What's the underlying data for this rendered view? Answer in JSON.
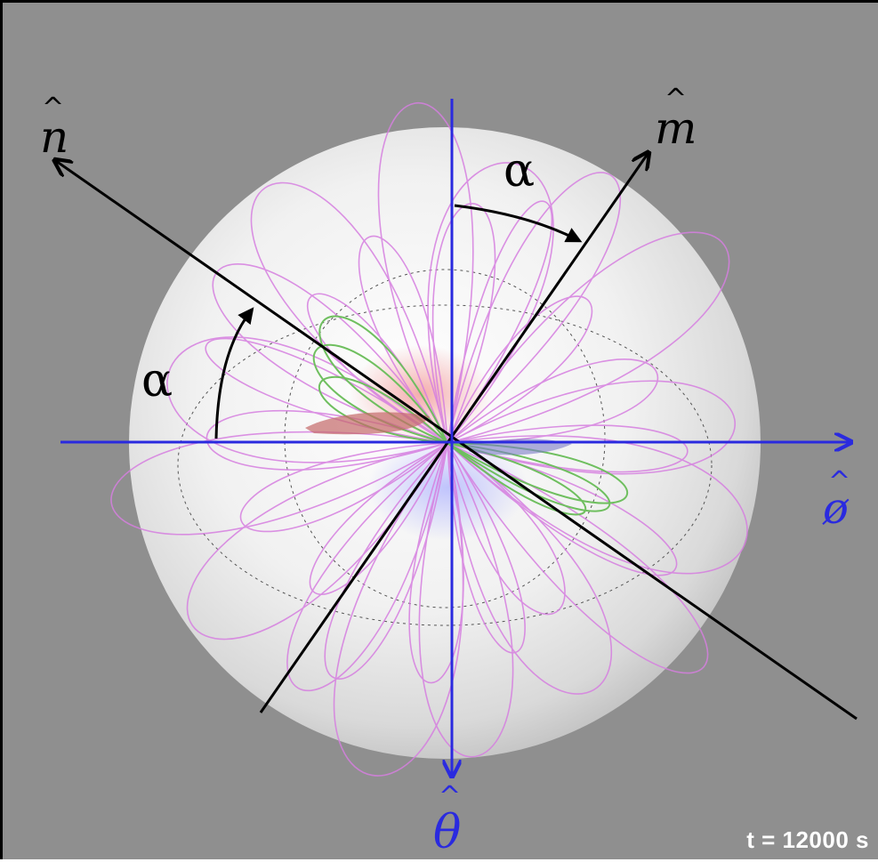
{
  "labels": {
    "n_axis": "n",
    "m_axis": "m",
    "phi_axis": "ø",
    "theta_axis": "θ",
    "alpha_top": "α",
    "alpha_left": "α"
  },
  "timestamp": "t = 12000 s",
  "colors": {
    "background": "#8f8f8f",
    "sphere": "#f2f2f2",
    "field_open": "#d67fe0",
    "field_closed": "#6fbf5f",
    "axis_blue": "#2a2adf",
    "axis_black": "#000000"
  },
  "angles": {
    "alpha_deg": 38
  }
}
